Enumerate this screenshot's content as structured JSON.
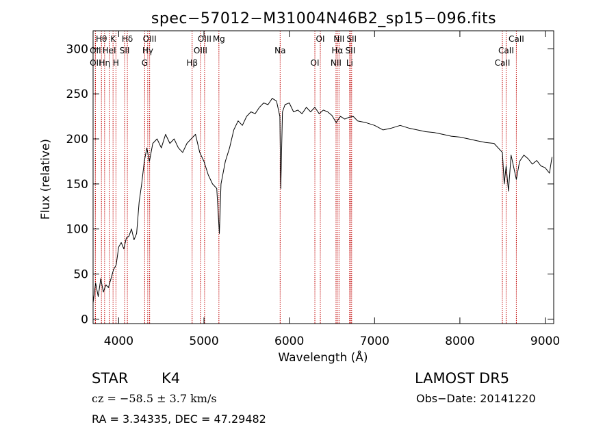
{
  "chart_data": {
    "type": "line",
    "title": "spec−57012−M31004N46B2_sp15−096.fits",
    "xlabel": "Wavelength (Å)",
    "ylabel": "Flux (relative)",
    "xlim": [
      3700,
      9100
    ],
    "ylim": [
      -5,
      320
    ],
    "xticks": [
      4000,
      5000,
      6000,
      7000,
      8000,
      9000
    ],
    "yticks": [
      0,
      50,
      100,
      150,
      200,
      250,
      300
    ],
    "spectrum": {
      "x": [
        3700,
        3730,
        3760,
        3790,
        3820,
        3850,
        3880,
        3910,
        3940,
        3970,
        4000,
        4030,
        4060,
        4090,
        4120,
        4150,
        4180,
        4210,
        4240,
        4270,
        4300,
        4330,
        4360,
        4400,
        4450,
        4500,
        4550,
        4600,
        4650,
        4700,
        4750,
        4800,
        4850,
        4900,
        4950,
        5000,
        5050,
        5100,
        5150,
        5180,
        5200,
        5250,
        5300,
        5350,
        5400,
        5450,
        5500,
        5550,
        5600,
        5650,
        5700,
        5750,
        5800,
        5850,
        5890,
        5900,
        5920,
        5950,
        6000,
        6050,
        6100,
        6150,
        6200,
        6250,
        6300,
        6350,
        6400,
        6450,
        6500,
        6550,
        6563,
        6600,
        6650,
        6700,
        6750,
        6800,
        6900,
        7000,
        7100,
        7200,
        7300,
        7400,
        7500,
        7600,
        7700,
        7800,
        7900,
        8000,
        8100,
        8200,
        8300,
        8400,
        8498,
        8520,
        8542,
        8570,
        8600,
        8662,
        8700,
        8750,
        8800,
        8850,
        8900,
        8950,
        9000,
        9050,
        9080
      ],
      "y": [
        18,
        40,
        25,
        45,
        30,
        38,
        35,
        45,
        55,
        60,
        80,
        85,
        78,
        90,
        92,
        100,
        88,
        95,
        130,
        150,
        175,
        190,
        175,
        195,
        200,
        190,
        205,
        195,
        200,
        190,
        185,
        195,
        200,
        205,
        185,
        175,
        160,
        150,
        145,
        95,
        150,
        175,
        190,
        210,
        220,
        215,
        225,
        230,
        228,
        235,
        240,
        238,
        245,
        242,
        225,
        145,
        230,
        238,
        240,
        230,
        232,
        228,
        235,
        230,
        235,
        228,
        232,
        230,
        226,
        218,
        220,
        225,
        222,
        224,
        225,
        220,
        218,
        215,
        210,
        212,
        215,
        212,
        210,
        208,
        207,
        205,
        203,
        202,
        200,
        198,
        196,
        195,
        185,
        150,
        170,
        142,
        182,
        155,
        175,
        182,
        178,
        172,
        176,
        170,
        168,
        162,
        180
      ]
    },
    "lines": [
      {
        "name": "Hθ",
        "x": 3798
      },
      {
        "name": "OII",
        "x": 3727
      },
      {
        "name": "OII",
        "x": 3727
      },
      {
        "name": "K",
        "x": 3934
      },
      {
        "name": "HeI",
        "x": 3889
      },
      {
        "name": "Hη",
        "x": 3835
      },
      {
        "name": "Hδ",
        "x": 4102
      },
      {
        "name": "SII",
        "x": 4070
      },
      {
        "name": "H",
        "x": 3968
      },
      {
        "name": "OIII",
        "x": 4363
      },
      {
        "name": "Hγ",
        "x": 4341
      },
      {
        "name": "G",
        "x": 4305
      },
      {
        "name": "OIII",
        "x": 5007
      },
      {
        "name": "OIII",
        "x": 4959
      },
      {
        "name": "Hβ",
        "x": 4861
      },
      {
        "name": "Mg",
        "x": 5175
      },
      {
        "name": "Na",
        "x": 5893
      },
      {
        "name": "OI",
        "x": 6300
      },
      {
        "name": "OI",
        "x": 6364
      },
      {
        "name": "Hα",
        "x": 6563
      },
      {
        "name": "NII",
        "x": 6548
      },
      {
        "name": "NII",
        "x": 6583
      },
      {
        "name": "SII",
        "x": 6716
      },
      {
        "name": "Li",
        "x": 6708
      },
      {
        "name": "SII",
        "x": 6731
      },
      {
        "name": "CaII",
        "x": 8542
      },
      {
        "name": "CaII",
        "x": 8498
      },
      {
        "name": "CaII",
        "x": 8662
      }
    ]
  },
  "info": {
    "class_label": "STAR",
    "subclass": "K4",
    "survey": "LAMOST  DR5",
    "cz": "cz = −58.5 ± 3.7 km/s",
    "obs_date": "Obs−Date: 20141220",
    "coords": "RA =    3.34335, DEC =  47.29482"
  },
  "colors": {
    "spectrum": "#000000",
    "line_markers": "#c00000",
    "background": "#ffffff"
  }
}
